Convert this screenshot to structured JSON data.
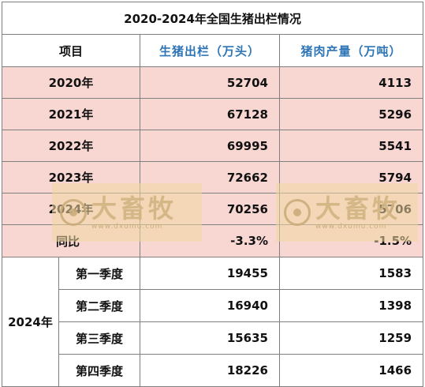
{
  "title": "2020-2024年全国生猪出栏情况",
  "headers": {
    "item": "项目",
    "col1": "生猪出栏（万头）",
    "col2": "猪肉产量（万吨）"
  },
  "years": [
    {
      "label": "2020年",
      "hogs": "52704",
      "pork": "4113"
    },
    {
      "label": "2021年",
      "hogs": "67128",
      "pork": "5296"
    },
    {
      "label": "2022年",
      "hogs": "69995",
      "pork": "5541"
    },
    {
      "label": "2023年",
      "hogs": "72662",
      "pork": "5794"
    },
    {
      "label": "2024年",
      "hogs": "70256",
      "pork": "5706"
    }
  ],
  "yoy": {
    "label": "同比",
    "hogs": "-3.3%",
    "pork": "-1.5%"
  },
  "quarter_year": "2024年",
  "quarters": [
    {
      "label": "第一季度",
      "hogs": "19455",
      "pork": "1583"
    },
    {
      "label": "第二季度",
      "hogs": "16940",
      "pork": "1398"
    },
    {
      "label": "第三季度",
      "hogs": "15635",
      "pork": "1259"
    },
    {
      "label": "第四季度",
      "hogs": "18226",
      "pork": "1466"
    }
  ],
  "watermark": {
    "text": "大畜牧",
    "url": "www.dxumu.com"
  },
  "colors": {
    "accent": "#2e75b6",
    "row_fill": "#f8d7d3",
    "border": "#7f7f7f"
  }
}
